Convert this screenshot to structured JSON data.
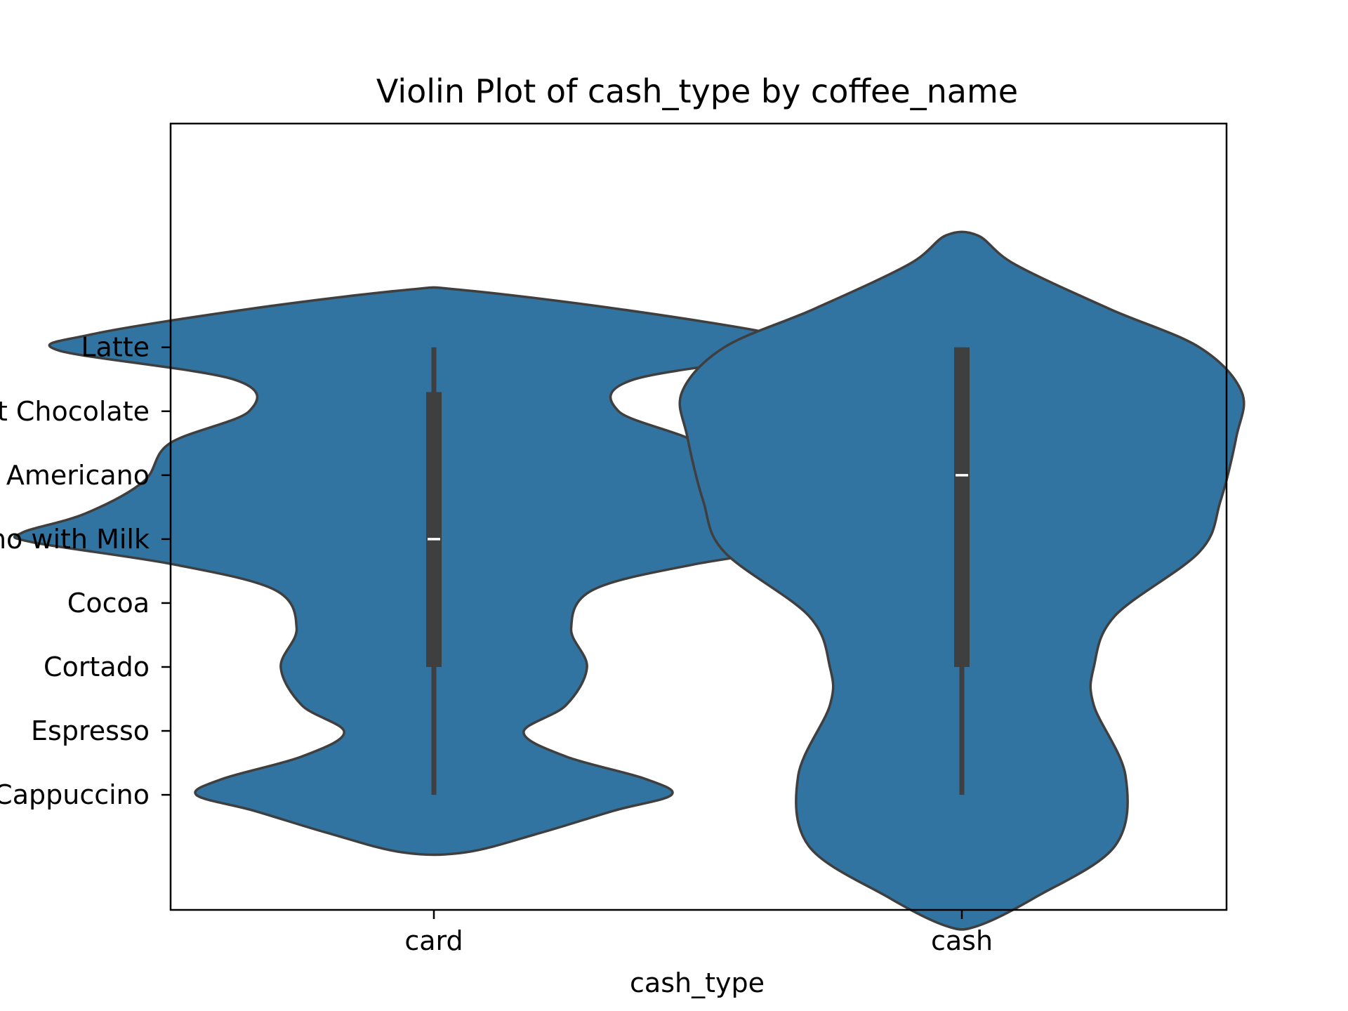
{
  "chart_data": {
    "type": "violin",
    "title": "Violin Plot of cash_type by coffee_name",
    "xlabel": "cash_type",
    "ylabel": "",
    "x_categories": [
      "card",
      "cash"
    ],
    "y_categories": [
      "Latte",
      "Hot Chocolate",
      "Americano",
      "Americano with Milk",
      "Cocoa",
      "Cortado",
      "Espresso",
      "Cappuccino"
    ],
    "ylim": [
      -1.8,
      10.5
    ],
    "grid": false,
    "legend": "none",
    "colors": {
      "fill": "#3274a1",
      "edge": "#3f3f3f",
      "box": "#3f3f3f",
      "median": "#ffffff"
    },
    "series": [
      {
        "category": "card",
        "whisker_low": 0,
        "q1": 2,
        "median": 4,
        "q3": 6.3,
        "whisker_high": 7,
        "density": [
          {
            "y": -0.9,
            "w": 0.06
          },
          {
            "y": -0.6,
            "w": 0.2
          },
          {
            "y": -0.25,
            "w": 0.34
          },
          {
            "y": 0.0,
            "w": 0.45
          },
          {
            "y": 0.25,
            "w": 0.4
          },
          {
            "y": 0.6,
            "w": 0.25
          },
          {
            "y": 0.98,
            "w": 0.17
          },
          {
            "y": 1.4,
            "w": 0.25
          },
          {
            "y": 2.0,
            "w": 0.29
          },
          {
            "y": 2.6,
            "w": 0.26
          },
          {
            "y": 3.2,
            "w": 0.3
          },
          {
            "y": 3.6,
            "w": 0.49
          },
          {
            "y": 3.95,
            "w": 0.76
          },
          {
            "y": 4.1,
            "w": 0.78
          },
          {
            "y": 4.4,
            "w": 0.66
          },
          {
            "y": 4.9,
            "w": 0.55
          },
          {
            "y": 5.5,
            "w": 0.5
          },
          {
            "y": 6.0,
            "w": 0.35
          },
          {
            "y": 6.5,
            "w": 0.38
          },
          {
            "y": 6.95,
            "w": 0.71
          },
          {
            "y": 7.2,
            "w": 0.65
          },
          {
            "y": 7.6,
            "w": 0.35
          },
          {
            "y": 7.9,
            "w": 0.05
          }
        ]
      },
      {
        "category": "cash",
        "whisker_low": 0,
        "q1": 2,
        "median": 5,
        "q3": 7,
        "whisker_high": 7,
        "density": [
          {
            "y": -2.05,
            "w": 0.03
          },
          {
            "y": -1.6,
            "w": 0.14
          },
          {
            "y": -0.8,
            "w": 0.29
          },
          {
            "y": 0.3,
            "w": 0.31
          },
          {
            "y": 1.4,
            "w": 0.25
          },
          {
            "y": 2.0,
            "w": 0.25
          },
          {
            "y": 2.8,
            "w": 0.29
          },
          {
            "y": 3.8,
            "w": 0.45
          },
          {
            "y": 4.6,
            "w": 0.49
          },
          {
            "y": 5.6,
            "w": 0.52
          },
          {
            "y": 6.3,
            "w": 0.53
          },
          {
            "y": 7.0,
            "w": 0.45
          },
          {
            "y": 7.6,
            "w": 0.28
          },
          {
            "y": 8.3,
            "w": 0.1
          },
          {
            "y": 8.75,
            "w": 0.03
          }
        ]
      }
    ]
  }
}
